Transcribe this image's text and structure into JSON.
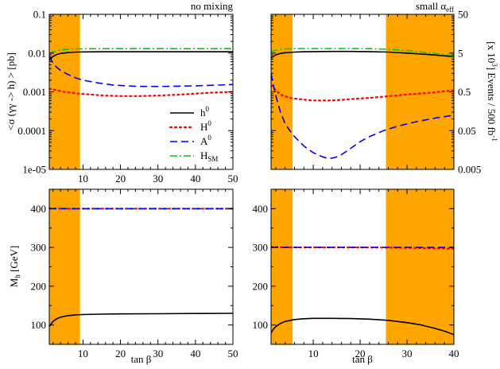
{
  "colors": {
    "excluded": "#FFA500",
    "h0": "#000000",
    "H0": "#ff0000",
    "A0": "#0000ff",
    "HSM": "#00cc00"
  },
  "chart_data": [
    {
      "type": "line",
      "panel": "top-left",
      "title": "no mixing",
      "xlabel": "",
      "ylabel": "<σ (γγ -> h) > [pb]",
      "yscale": "log",
      "xlim": [
        1,
        50
      ],
      "ylim": [
        1e-05,
        0.1
      ],
      "xticks": [
        10,
        20,
        30,
        40,
        50
      ],
      "yticks": [
        1e-05,
        0.0001,
        0.001,
        0.01,
        0.1
      ],
      "ytick_labels": [
        "1e-05",
        "0.0001",
        "0.001",
        "0.01",
        "0.1"
      ],
      "shaded_x_ranges": [
        [
          1,
          9.2
        ]
      ],
      "legend": {
        "position": "lower-right",
        "entries": [
          {
            "key": "h0",
            "base": "h",
            "sup": "0",
            "sub": ""
          },
          {
            "key": "H0",
            "base": "H",
            "sup": "0",
            "sub": ""
          },
          {
            "key": "A0",
            "base": "A",
            "sup": "0",
            "sub": ""
          },
          {
            "key": "HSM",
            "base": "H",
            "sup": "",
            "sub": "SM"
          }
        ]
      },
      "series": [
        {
          "name": "h0",
          "style": "solid",
          "x": [
            1,
            2,
            3,
            4,
            6,
            8,
            10,
            15,
            20,
            30,
            40,
            50
          ],
          "y": [
            0.0065,
            0.0082,
            0.0092,
            0.0098,
            0.0103,
            0.0106,
            0.0107,
            0.0108,
            0.0108,
            0.0108,
            0.0108,
            0.0108
          ]
        },
        {
          "name": "H0",
          "style": "dotted",
          "x": [
            1,
            2,
            3,
            5,
            8,
            12,
            16,
            20,
            25,
            30,
            35,
            40,
            45,
            50
          ],
          "y": [
            0.0012,
            0.00115,
            0.0011,
            0.001,
            0.00092,
            0.00085,
            0.0008,
            0.00078,
            0.00078,
            0.0008,
            0.00084,
            0.0009,
            0.00096,
            0.001
          ]
        },
        {
          "name": "A0",
          "style": "dashed",
          "x": [
            1,
            2,
            3,
            4,
            6,
            8,
            10,
            14,
            18,
            22,
            26,
            30,
            35,
            40,
            45,
            50
          ],
          "y": [
            0.0082,
            0.0055,
            0.0043,
            0.0036,
            0.0028,
            0.0023,
            0.002,
            0.0017,
            0.0015,
            0.00142,
            0.00138,
            0.00138,
            0.0014,
            0.00143,
            0.00148,
            0.00155
          ]
        },
        {
          "name": "HSM",
          "style": "dashdot",
          "x": [
            1,
            2,
            3,
            4,
            6,
            8,
            10,
            15,
            20,
            30,
            40,
            50
          ],
          "y": [
            0.0095,
            0.0108,
            0.0115,
            0.012,
            0.0125,
            0.0128,
            0.0129,
            0.013,
            0.013,
            0.013,
            0.013,
            0.013
          ]
        }
      ]
    },
    {
      "type": "line",
      "panel": "top-right",
      "title": "small α",
      "title_sub": "eff",
      "xlabel": "",
      "ylabel": "[x 10^3] Events / 500 fb^-1",
      "yscale": "log",
      "xlim": [
        1,
        40
      ],
      "ylim": [
        1e-05,
        0.1
      ],
      "right_axis_ticks": [
        "50",
        "5",
        "0.5",
        "0.05",
        "0.005"
      ],
      "shaded_x_ranges": [
        [
          1,
          5.6
        ],
        [
          25.5,
          40
        ]
      ],
      "series": [
        {
          "name": "h0",
          "style": "solid",
          "x": [
            1,
            2,
            3,
            4,
            6,
            8,
            10,
            14,
            18,
            22,
            26,
            30,
            34,
            38,
            40
          ],
          "y": [
            0.0075,
            0.009,
            0.0098,
            0.0102,
            0.0106,
            0.0108,
            0.0109,
            0.011,
            0.011,
            0.0109,
            0.0106,
            0.01,
            0.0093,
            0.0085,
            0.008
          ]
        },
        {
          "name": "H0",
          "style": "dotted",
          "x": [
            1,
            2,
            3,
            5,
            8,
            10,
            12,
            14,
            16,
            18,
            22,
            26,
            30,
            35,
            40
          ],
          "y": [
            0.0015,
            0.0011,
            0.00085,
            0.0007,
            0.00063,
            0.0006,
            0.0006,
            0.0006,
            0.00062,
            0.00065,
            0.0007,
            0.00077,
            0.00085,
            0.00095,
            0.0011
          ]
        },
        {
          "name": "A0",
          "style": "dashed",
          "x": [
            1,
            1.5,
            2,
            3,
            4,
            5,
            6,
            8,
            10,
            12,
            13,
            14,
            15,
            16,
            18,
            20,
            22,
            25,
            28,
            32,
            36,
            40
          ],
          "y": [
            0.003,
            0.0015,
            0.0008,
            0.0003,
            0.00015,
            0.0001,
            7e-05,
            4e-05,
            2.7e-05,
            2.1e-05,
            1.95e-05,
            1.95e-05,
            2.1e-05,
            2.4e-05,
            3.5e-05,
            5.2e-05,
            7e-05,
            0.0001,
            0.00013,
            0.00017,
            0.00021,
            0.00025
          ]
        },
        {
          "name": "HSM",
          "style": "dashdot",
          "x": [
            1,
            2,
            3,
            4,
            6,
            8,
            10,
            14,
            18,
            22,
            26,
            30,
            34,
            38,
            40
          ],
          "y": [
            0.0108,
            0.0118,
            0.0124,
            0.0128,
            0.013,
            0.0131,
            0.0131,
            0.0131,
            0.0131,
            0.013,
            0.0126,
            0.0116,
            0.0104,
            0.0092,
            0.0085
          ]
        }
      ]
    },
    {
      "type": "line",
      "panel": "bottom-left",
      "xlabel": "tan β",
      "ylabel": "M",
      "ylabel_sub": "h",
      "ylabel_unit": " [GeV]",
      "yscale": "linear",
      "xlim": [
        1,
        50
      ],
      "ylim": [
        50,
        450
      ],
      "xticks": [
        10,
        20,
        30,
        40,
        50
      ],
      "yticks": [
        100,
        200,
        300,
        400
      ],
      "shaded_x_ranges": [
        [
          1,
          9.2
        ]
      ],
      "series": [
        {
          "name": "h0",
          "style": "solid",
          "x": [
            1,
            1.5,
            2,
            3,
            4,
            6,
            8,
            10,
            15,
            20,
            30,
            40,
            50
          ],
          "y": [
            96,
            103,
            109,
            116,
            120,
            124,
            126,
            127,
            128,
            128.5,
            129,
            129.5,
            130
          ]
        },
        {
          "name": "H0",
          "style": "dotted",
          "x": [
            1,
            5,
            10,
            20,
            30,
            40,
            50
          ],
          "y": [
            401,
            400,
            400,
            400,
            400,
            400,
            400
          ]
        },
        {
          "name": "A0",
          "style": "dashed",
          "x": [
            1,
            5,
            10,
            20,
            30,
            40,
            50
          ],
          "y": [
            400,
            400,
            400,
            400,
            400,
            400,
            400
          ]
        }
      ]
    },
    {
      "type": "line",
      "panel": "bottom-right",
      "xlabel": "tan β",
      "yscale": "linear",
      "xlim": [
        1,
        40
      ],
      "ylim": [
        50,
        450
      ],
      "xticks": [
        10,
        20,
        30,
        40
      ],
      "yticks": [
        100,
        200,
        300,
        400
      ],
      "shaded_x_ranges": [
        [
          1,
          5.6
        ],
        [
          25.5,
          40
        ]
      ],
      "series": [
        {
          "name": "h0",
          "style": "solid",
          "x": [
            1,
            1.5,
            2,
            3,
            4,
            6,
            8,
            10,
            14,
            18,
            22,
            26,
            30,
            33,
            36,
            38,
            40
          ],
          "y": [
            80,
            89,
            96,
            104,
            109,
            114,
            116,
            117,
            117,
            116.5,
            115,
            112,
            106,
            100,
            91,
            84,
            75
          ]
        },
        {
          "name": "H0",
          "style": "dotted",
          "x": [
            1,
            5,
            10,
            20,
            30,
            40
          ],
          "y": [
            301,
            300,
            300,
            300,
            299,
            297
          ]
        },
        {
          "name": "A0",
          "style": "dashed",
          "x": [
            1,
            5,
            10,
            20,
            30,
            40
          ],
          "y": [
            300,
            300,
            300,
            300,
            300,
            300
          ]
        }
      ]
    }
  ]
}
